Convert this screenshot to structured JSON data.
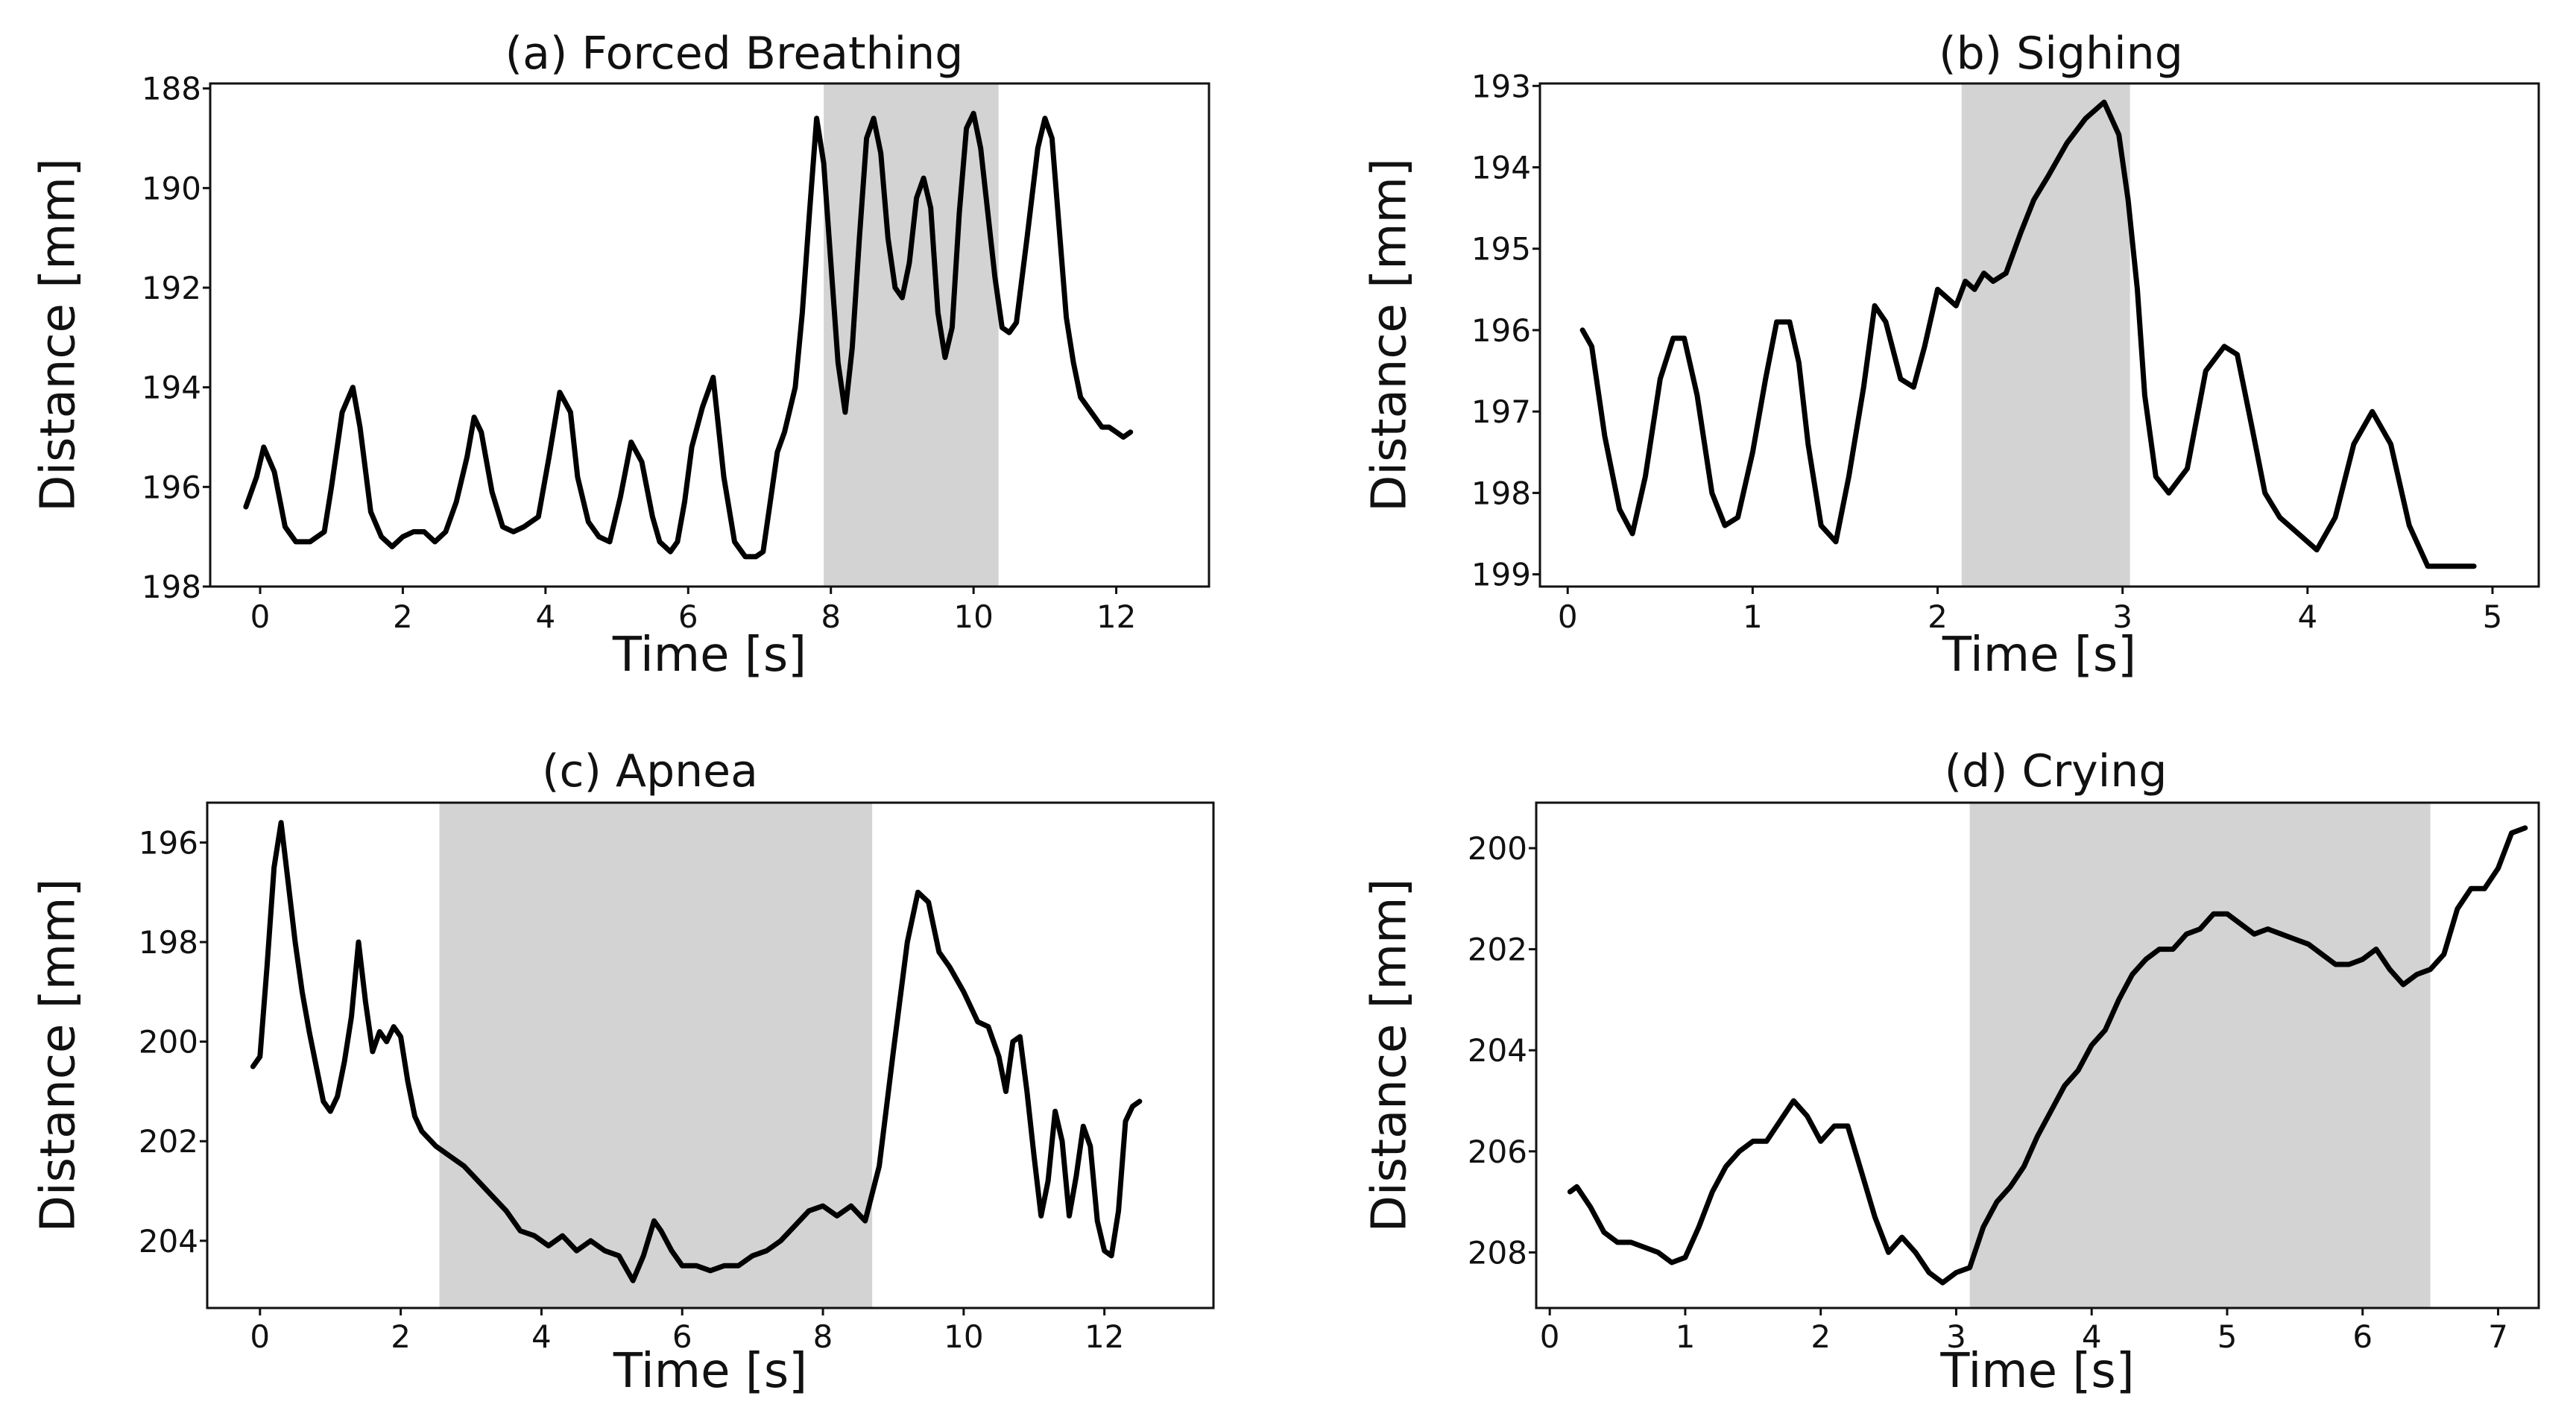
{
  "colors": {
    "line": "#000000",
    "shade": "#d3d3d3",
    "frame": "#111111"
  },
  "chart_data": [
    {
      "type": "line",
      "title": "(a) Forced Breathing",
      "xlabel": "Time [s]",
      "ylabel": "Distance [mm]",
      "xlim": [
        -0.7,
        13.3
      ],
      "ylim": [
        198,
        187.9
      ],
      "y_inverted": true,
      "xticks": [
        0,
        2,
        4,
        6,
        8,
        10,
        12
      ],
      "yticks": [
        188,
        190,
        192,
        194,
        196,
        198
      ],
      "shaded_region": [
        7.9,
        10.35
      ],
      "series": [
        {
          "name": "distance",
          "x": [
            -0.2,
            -0.05,
            0.05,
            0.2,
            0.35,
            0.5,
            0.7,
            0.9,
            1.0,
            1.15,
            1.3,
            1.4,
            1.55,
            1.7,
            1.85,
            2.0,
            2.15,
            2.3,
            2.45,
            2.6,
            2.75,
            2.9,
            3.0,
            3.1,
            3.25,
            3.4,
            3.55,
            3.7,
            3.9,
            4.05,
            4.2,
            4.35,
            4.45,
            4.6,
            4.75,
            4.9,
            5.05,
            5.2,
            5.35,
            5.5,
            5.6,
            5.75,
            5.85,
            5.95,
            6.05,
            6.2,
            6.35,
            6.5,
            6.65,
            6.8,
            6.95,
            7.05,
            7.15,
            7.25,
            7.35,
            7.5,
            7.6,
            7.7,
            7.8,
            7.9,
            8.0,
            8.1,
            8.2,
            8.3,
            8.4,
            8.5,
            8.6,
            8.7,
            8.8,
            8.9,
            9.0,
            9.1,
            9.2,
            9.3,
            9.4,
            9.5,
            9.6,
            9.7,
            9.8,
            9.9,
            10.0,
            10.1,
            10.2,
            10.3,
            10.4,
            10.5,
            10.6,
            10.75,
            10.9,
            11.0,
            11.1,
            11.2,
            11.3,
            11.4,
            11.5,
            11.6,
            11.7,
            11.8,
            11.9,
            12.0,
            12.1,
            12.2
          ],
          "y": [
            196.4,
            195.8,
            195.2,
            195.7,
            196.8,
            197.1,
            197.1,
            196.9,
            196.0,
            194.5,
            194.0,
            194.8,
            196.5,
            197.0,
            197.2,
            197.0,
            196.9,
            196.9,
            197.1,
            196.9,
            196.3,
            195.4,
            194.6,
            194.9,
            196.1,
            196.8,
            196.9,
            196.8,
            196.6,
            195.4,
            194.1,
            194.5,
            195.8,
            196.7,
            197.0,
            197.1,
            196.2,
            195.1,
            195.5,
            196.6,
            197.1,
            197.3,
            197.1,
            196.3,
            195.2,
            194.4,
            193.8,
            195.8,
            197.1,
            197.4,
            197.4,
            197.3,
            196.3,
            195.3,
            194.9,
            194.0,
            192.5,
            190.5,
            188.6,
            189.5,
            191.5,
            193.5,
            194.5,
            193.2,
            191.0,
            189.0,
            188.6,
            189.3,
            191.0,
            192.0,
            192.2,
            191.5,
            190.2,
            189.8,
            190.4,
            192.5,
            193.4,
            192.8,
            190.5,
            188.8,
            188.5,
            189.2,
            190.5,
            191.8,
            192.8,
            192.9,
            192.7,
            191.0,
            189.2,
            188.6,
            189.0,
            190.8,
            192.6,
            193.5,
            194.2,
            194.4,
            194.6,
            194.8,
            194.8,
            194.9,
            195.0,
            194.9
          ]
        }
      ]
    },
    {
      "type": "line",
      "title": "(b) Sighing",
      "xlabel": "Time [s]",
      "ylabel": "Distance [mm]",
      "xlim": [
        -0.15,
        5.25
      ],
      "ylim": [
        199.15,
        192.97
      ],
      "y_inverted": true,
      "xticks": [
        0,
        1,
        2,
        3,
        4,
        5
      ],
      "yticks": [
        193,
        194,
        195,
        196,
        197,
        198,
        199
      ],
      "shaded_region": [
        2.13,
        3.04
      ],
      "series": [
        {
          "name": "distance",
          "x": [
            0.08,
            0.13,
            0.2,
            0.28,
            0.35,
            0.42,
            0.5,
            0.57,
            0.63,
            0.7,
            0.78,
            0.85,
            0.92,
            1.0,
            1.07,
            1.13,
            1.2,
            1.25,
            1.3,
            1.37,
            1.45,
            1.52,
            1.6,
            1.66,
            1.72,
            1.8,
            1.87,
            1.93,
            2.0,
            2.05,
            2.1,
            2.15,
            2.2,
            2.25,
            2.3,
            2.37,
            2.45,
            2.52,
            2.6,
            2.7,
            2.8,
            2.9,
            2.98,
            3.03,
            3.08,
            3.12,
            3.18,
            3.25,
            3.35,
            3.45,
            3.55,
            3.62,
            3.7,
            3.77,
            3.85,
            3.95,
            4.05,
            4.15,
            4.25,
            4.35,
            4.45,
            4.55,
            4.65,
            4.75,
            4.9
          ],
          "y": [
            196.0,
            196.2,
            197.3,
            198.2,
            198.5,
            197.8,
            196.6,
            196.1,
            196.1,
            196.8,
            198.0,
            198.4,
            198.3,
            197.5,
            196.6,
            195.9,
            195.9,
            196.4,
            197.4,
            198.4,
            198.6,
            197.8,
            196.7,
            195.7,
            195.9,
            196.6,
            196.7,
            196.2,
            195.5,
            195.6,
            195.7,
            195.4,
            195.5,
            195.3,
            195.4,
            195.3,
            194.8,
            194.4,
            194.1,
            193.7,
            193.4,
            193.2,
            193.6,
            194.4,
            195.5,
            196.8,
            197.8,
            198.0,
            197.7,
            196.5,
            196.2,
            196.3,
            197.2,
            198.0,
            198.3,
            198.5,
            198.7,
            198.3,
            197.4,
            197.0,
            197.4,
            198.4,
            198.9,
            198.9,
            198.9
          ]
        }
      ]
    },
    {
      "type": "line",
      "title": "(c) Apnea",
      "xlabel": "Time [s]",
      "ylabel": "Distance [mm]",
      "xlim": [
        -0.75,
        13.55
      ],
      "ylim": [
        205.35,
        195.2
      ],
      "y_inverted": true,
      "xticks": [
        0,
        2,
        4,
        6,
        8,
        10,
        12
      ],
      "yticks": [
        196,
        198,
        200,
        202,
        204
      ],
      "shaded_region": [
        2.55,
        8.7
      ],
      "series": [
        {
          "name": "distance",
          "x": [
            -0.1,
            0.0,
            0.1,
            0.2,
            0.3,
            0.4,
            0.5,
            0.6,
            0.7,
            0.8,
            0.9,
            1.0,
            1.1,
            1.2,
            1.3,
            1.4,
            1.5,
            1.6,
            1.7,
            1.8,
            1.9,
            2.0,
            2.1,
            2.2,
            2.3,
            2.5,
            2.7,
            2.9,
            3.1,
            3.3,
            3.5,
            3.7,
            3.9,
            4.1,
            4.3,
            4.5,
            4.7,
            4.9,
            5.1,
            5.3,
            5.45,
            5.6,
            5.7,
            5.85,
            6.0,
            6.2,
            6.4,
            6.6,
            6.8,
            7.0,
            7.2,
            7.4,
            7.6,
            7.8,
            8.0,
            8.2,
            8.4,
            8.6,
            8.8,
            9.0,
            9.2,
            9.35,
            9.5,
            9.65,
            9.8,
            10.0,
            10.2,
            10.35,
            10.5,
            10.6,
            10.7,
            10.8,
            10.9,
            11.0,
            11.1,
            11.2,
            11.3,
            11.4,
            11.5,
            11.6,
            11.7,
            11.8,
            11.9,
            12.0,
            12.1,
            12.2,
            12.3,
            12.4,
            12.5
          ],
          "y": [
            200.5,
            200.3,
            198.5,
            196.5,
            195.6,
            196.8,
            198.0,
            199.0,
            199.8,
            200.5,
            201.2,
            201.4,
            201.1,
            200.4,
            199.5,
            198.0,
            199.2,
            200.2,
            199.8,
            200.0,
            199.7,
            199.9,
            200.8,
            201.5,
            201.8,
            202.1,
            202.3,
            202.5,
            202.8,
            203.1,
            203.4,
            203.8,
            203.9,
            204.1,
            203.9,
            204.2,
            204.0,
            204.2,
            204.3,
            204.8,
            204.3,
            203.6,
            203.8,
            204.2,
            204.5,
            204.5,
            204.6,
            204.5,
            204.5,
            204.3,
            204.2,
            204.0,
            203.7,
            203.4,
            203.3,
            203.5,
            203.3,
            203.6,
            202.5,
            200.2,
            198.0,
            197.0,
            197.2,
            198.2,
            198.5,
            199.0,
            199.6,
            199.7,
            200.3,
            201.0,
            200.0,
            199.9,
            201.0,
            202.3,
            203.5,
            202.8,
            201.4,
            202.0,
            203.5,
            202.7,
            201.7,
            202.1,
            203.6,
            204.2,
            204.3,
            203.4,
            201.6,
            201.3,
            201.2
          ]
        }
      ]
    },
    {
      "type": "line",
      "title": "(d) Crying",
      "xlabel": "Time [s]",
      "ylabel": "Distance [mm]",
      "xlim": [
        -0.1,
        7.3
      ],
      "ylim": [
        209.1,
        199.1
      ],
      "y_inverted": true,
      "xticks": [
        0,
        1,
        2,
        3,
        4,
        5,
        6,
        7
      ],
      "yticks": [
        200,
        202,
        204,
        206,
        208
      ],
      "shaded_region": [
        3.1,
        6.5
      ],
      "series": [
        {
          "name": "distance",
          "x": [
            0.15,
            0.2,
            0.3,
            0.4,
            0.5,
            0.6,
            0.7,
            0.8,
            0.9,
            1.0,
            1.1,
            1.2,
            1.3,
            1.4,
            1.5,
            1.6,
            1.7,
            1.8,
            1.9,
            2.0,
            2.1,
            2.2,
            2.3,
            2.4,
            2.5,
            2.6,
            2.7,
            2.8,
            2.9,
            3.0,
            3.1,
            3.2,
            3.3,
            3.4,
            3.5,
            3.6,
            3.7,
            3.8,
            3.9,
            4.0,
            4.1,
            4.2,
            4.3,
            4.4,
            4.5,
            4.6,
            4.7,
            4.8,
            4.9,
            5.0,
            5.1,
            5.2,
            5.3,
            5.4,
            5.5,
            5.6,
            5.7,
            5.8,
            5.9,
            6.0,
            6.1,
            6.2,
            6.3,
            6.4,
            6.5,
            6.6,
            6.7,
            6.8,
            6.9,
            7.0,
            7.1,
            7.2
          ],
          "y": [
            206.8,
            206.7,
            207.1,
            207.6,
            207.8,
            207.8,
            207.9,
            208.0,
            208.2,
            208.1,
            207.5,
            206.8,
            206.3,
            206.0,
            205.8,
            205.8,
            205.4,
            205.0,
            205.3,
            205.8,
            205.5,
            205.5,
            206.4,
            207.3,
            208.0,
            207.7,
            208.0,
            208.4,
            208.6,
            208.4,
            208.3,
            207.5,
            207.0,
            206.7,
            206.3,
            205.7,
            205.2,
            204.7,
            204.4,
            203.9,
            203.6,
            203.0,
            202.5,
            202.2,
            202.0,
            202.0,
            201.7,
            201.6,
            201.3,
            201.3,
            201.5,
            201.7,
            201.6,
            201.7,
            201.8,
            201.9,
            202.1,
            202.3,
            202.3,
            202.2,
            202.0,
            202.4,
            202.7,
            202.5,
            202.4,
            202.1,
            201.2,
            200.8,
            200.8,
            200.4,
            199.7,
            199.6
          ]
        }
      ]
    }
  ]
}
